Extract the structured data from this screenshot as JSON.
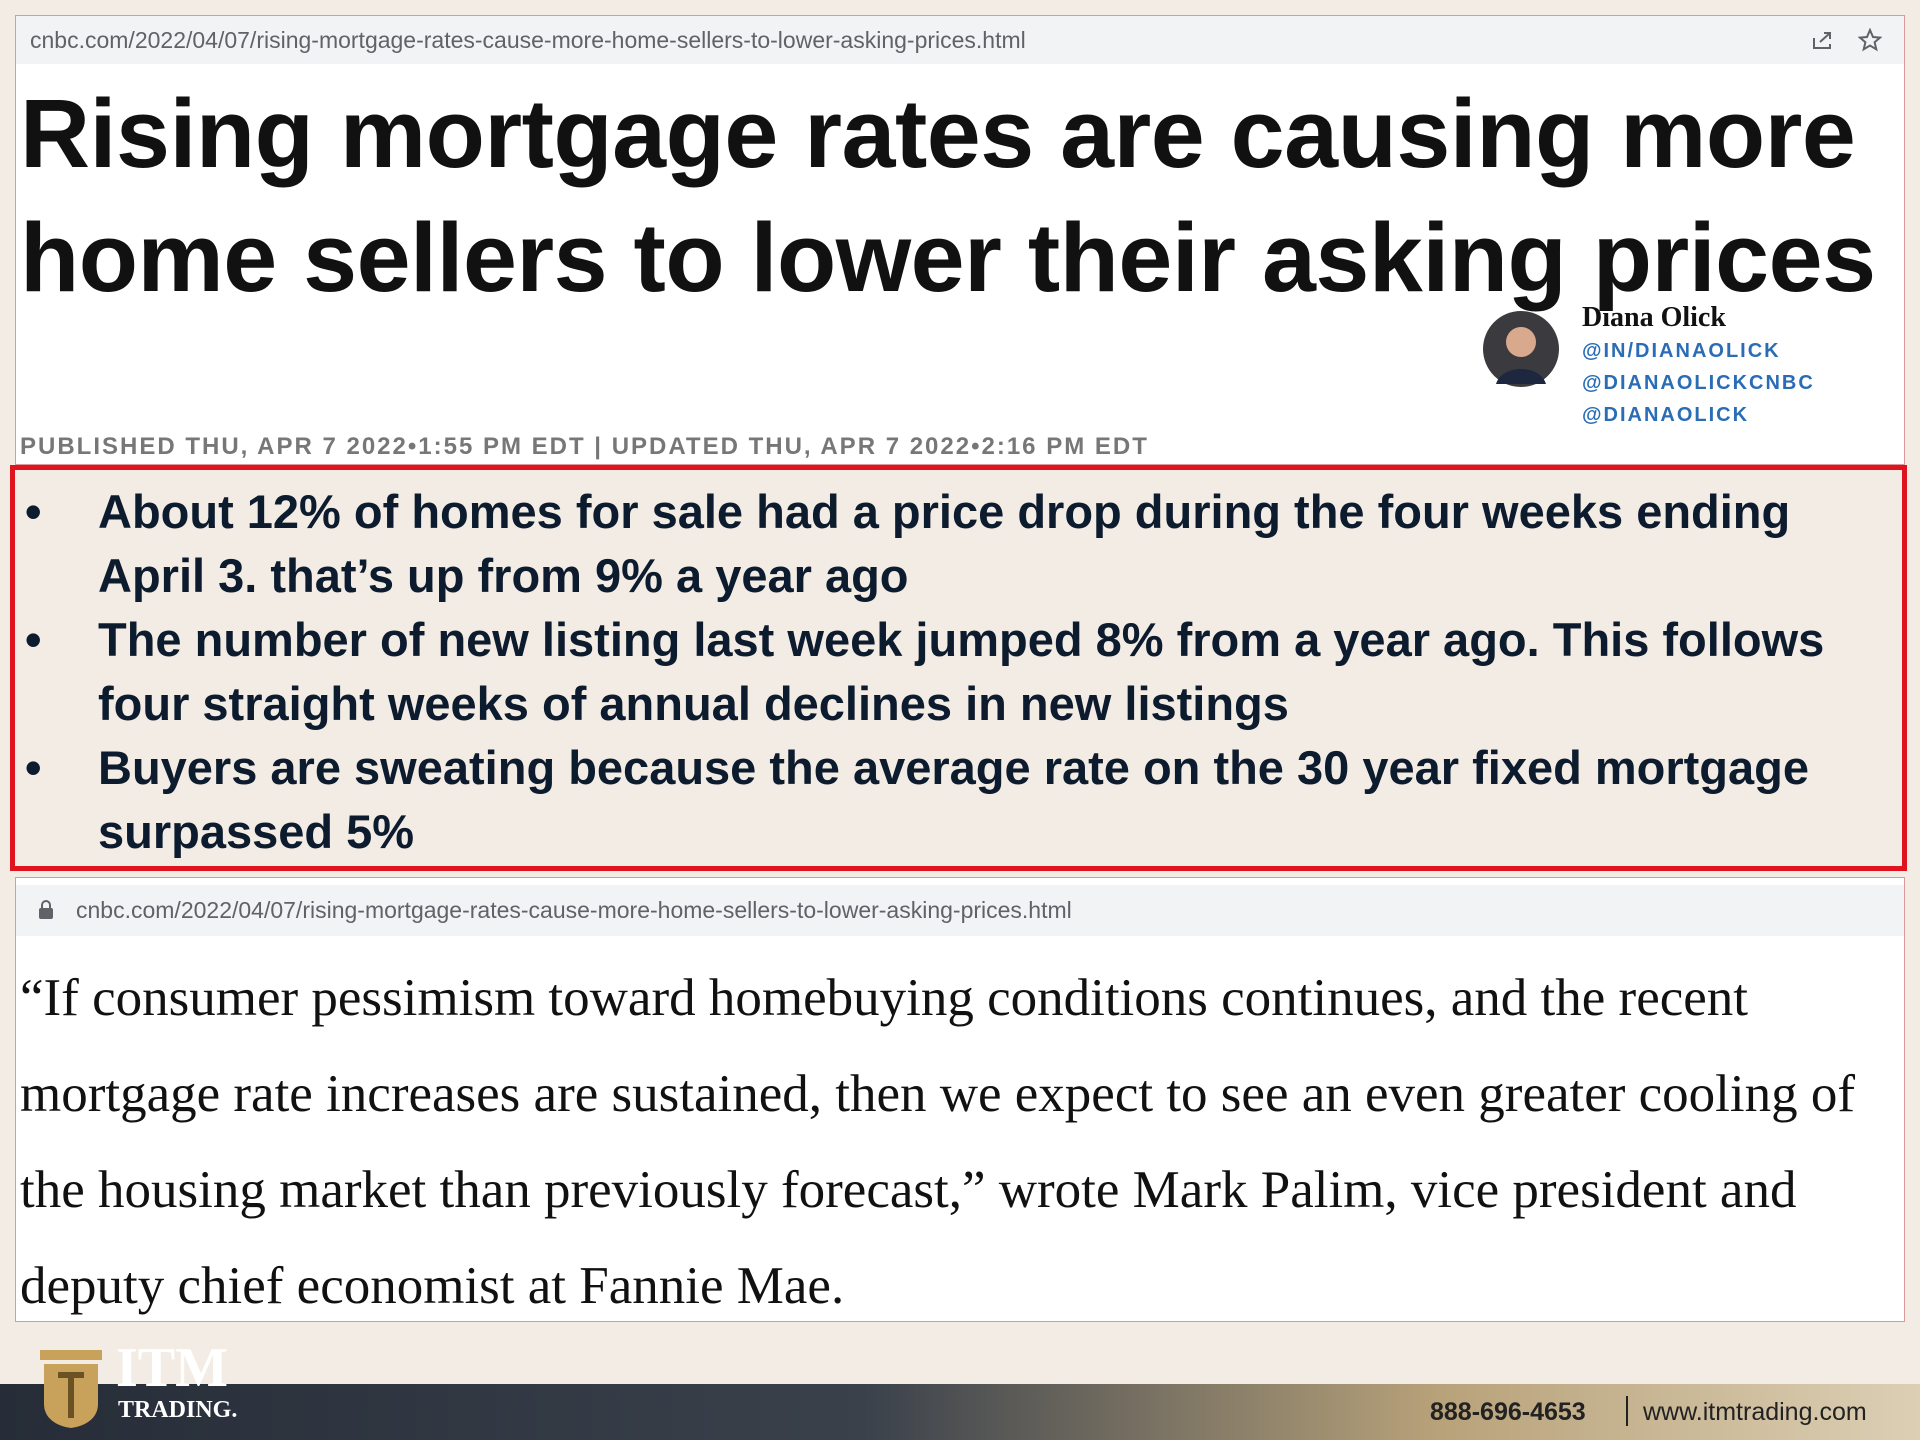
{
  "header": {
    "url": "cnbc.com/2022/04/07/rising-mortgage-rates-cause-more-home-sellers-to-lower-asking-prices.html"
  },
  "article": {
    "headline": "Rising mortgage rates are causing more home sellers to lower their asking prices",
    "published": "PUBLISHED THU, APR 7 2022•1:55 PM EDT | UPDATED THU, APR 7 2022•2:16 PM EDT"
  },
  "author": {
    "name": "Diana Olick",
    "handles": [
      "@IN/DIANAOLICK",
      "@DIANAOLICKCNBC",
      "@DIANAOLICK"
    ]
  },
  "bullets": [
    "About 12% of homes for sale had a price drop during the four weeks ending April 3. that’s up from 9% a year ago",
    "The number of new listing last week jumped 8% from a year ago. This follows four straight weeks of annual declines in new listings",
    "Buyers are sweating because the average rate on the 30 year fixed mortgage surpassed 5%"
  ],
  "quote_panel": {
    "url": "cnbc.com/2022/04/07/rising-mortgage-rates-cause-more-home-sellers-to-lower-asking-prices.html",
    "quote": "“If consumer pessimism toward homebuying conditions continues, and the recent mortgage rate increases are sustained, then we expect to see an even greater cooling of the housing market than previously forecast,” wrote Mark Palim, vice president and deputy chief economist at Fannie Mae."
  },
  "footer": {
    "logo_main": "ITM",
    "logo_sub": "TRADING.",
    "phone": "888-696-4653",
    "website": "www.itmtrading.com"
  }
}
